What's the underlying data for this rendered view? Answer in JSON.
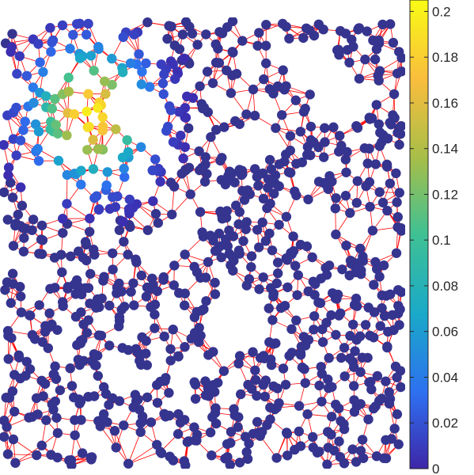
{
  "chart_data": {
    "type": "scatter",
    "subtype": "network-graph",
    "title": "",
    "xlabel": "",
    "ylabel": "",
    "xlim": [
      0,
      1
    ],
    "ylim": [
      0,
      1
    ],
    "grid": false,
    "legend": "none",
    "node_count": 1000,
    "colors": {
      "edges": "#ff0000",
      "node_base": "#35348f",
      "colormap": "parula",
      "colormap_stops": [
        "#3e26a8",
        "#2e6ff0",
        "#1aa9c9",
        "#3fc194",
        "#a5be49",
        "#f9bd3d",
        "#f9fb15"
      ]
    },
    "hotspot": {
      "center": [
        0.22,
        0.79
      ],
      "peak_value": 0.2,
      "radius": 0.28
    },
    "colorbar": {
      "label": "",
      "lim": [
        0,
        0.205
      ],
      "ticks": [
        0,
        0.02,
        0.04,
        0.06,
        0.08,
        0.1,
        0.12,
        0.14,
        0.16,
        0.18,
        0.2
      ],
      "tick_labels": [
        "0",
        "0.02",
        "0.04",
        "0.06",
        "0.08",
        "0.1",
        "0.12",
        "0.14",
        "0.16",
        "0.18",
        "0.2"
      ]
    }
  }
}
